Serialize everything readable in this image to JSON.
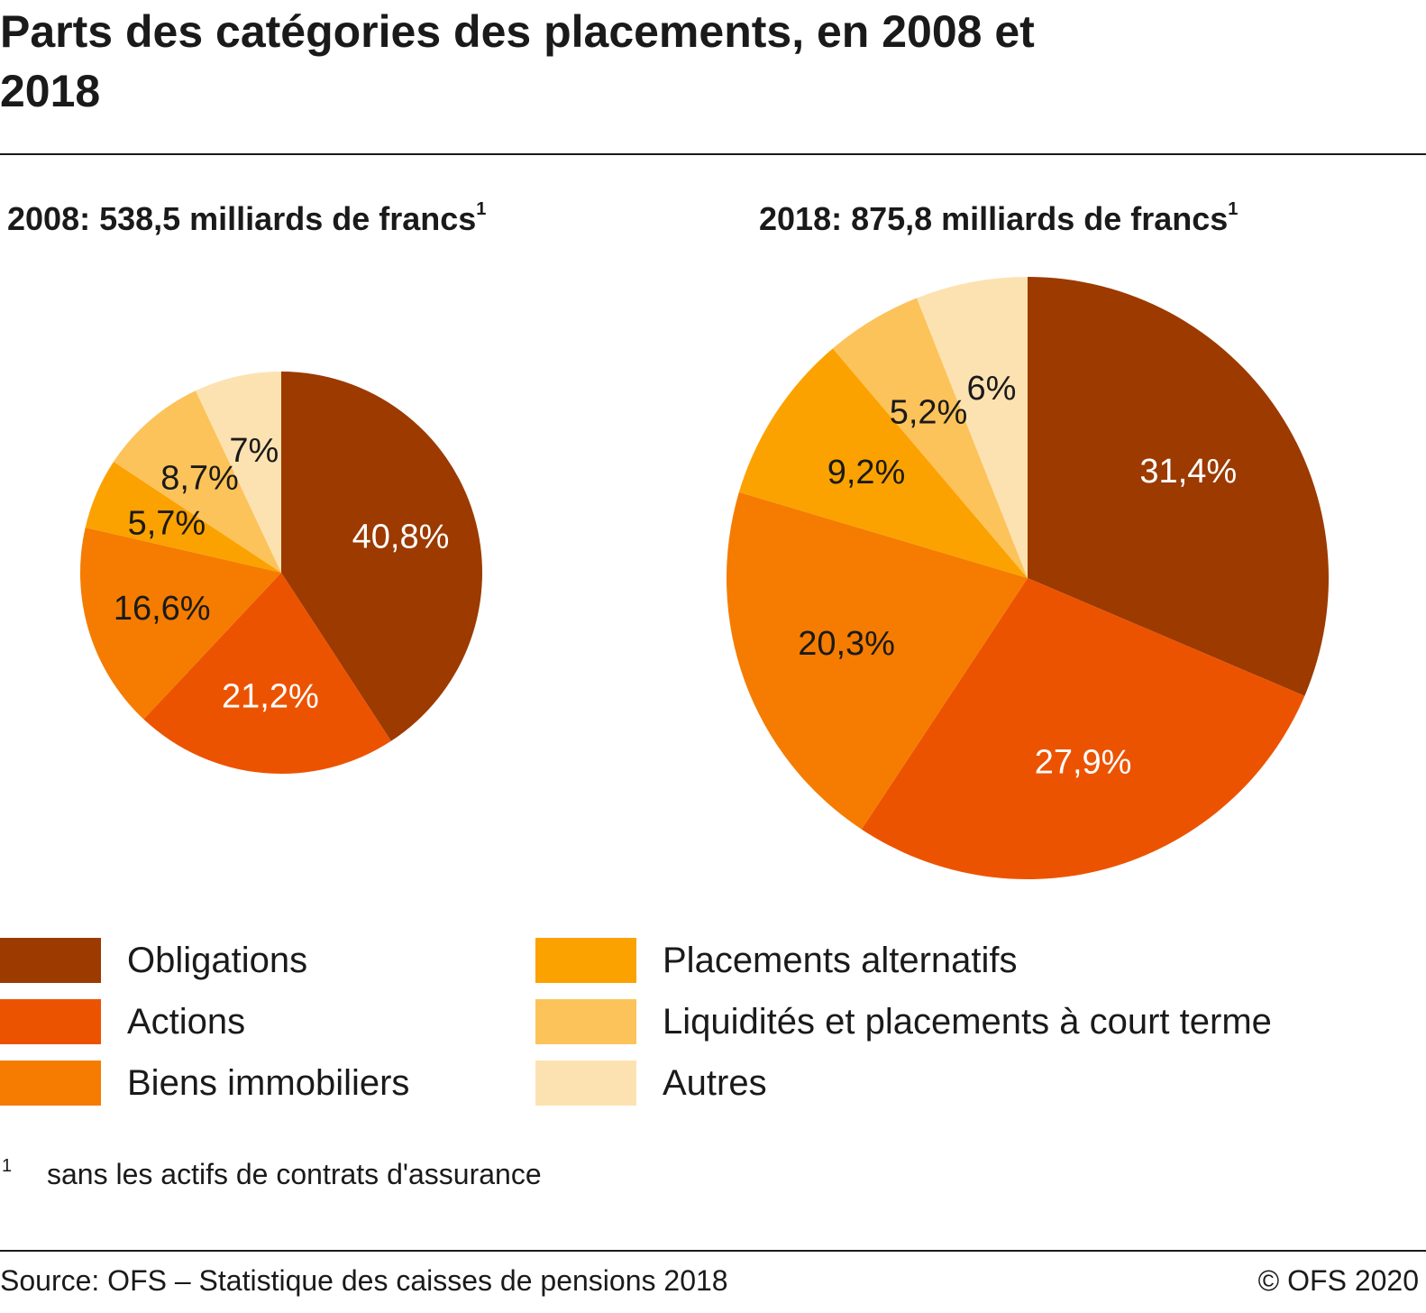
{
  "title": "Parts des catégories des placements, en 2008 et 2018",
  "legend": [
    {
      "label": "Obligations",
      "color": "#9c3a00"
    },
    {
      "label": "Actions",
      "color": "#ec5300"
    },
    {
      "label": "Biens immobiliers",
      "color": "#f57c00"
    },
    {
      "label": "Placements alternatifs",
      "color": "#fba200"
    },
    {
      "label": "Liquidités et placements à court terme",
      "color": "#fcc35a"
    },
    {
      "label": "Autres",
      "color": "#fde2b1"
    }
  ],
  "chart_data": [
    {
      "type": "pie",
      "title": "2008: 538,5 milliards de francs",
      "title_footnote": "1",
      "categories": [
        "Obligations",
        "Actions",
        "Biens immobiliers",
        "Placements alternatifs",
        "Liquidités et placements à court terme",
        "Autres"
      ],
      "values": [
        40.8,
        21.2,
        16.6,
        5.7,
        8.7,
        7.0
      ],
      "labels": [
        "40,8%",
        "21,2%",
        "16,6%",
        "5,7%",
        "8,7%",
        "7%"
      ],
      "label_colors": [
        "#ffffff",
        "#ffffff",
        "#1a1a1a",
        "#1a1a1a",
        "#1a1a1a",
        "#1a1a1a"
      ]
    },
    {
      "type": "pie",
      "title": "2018: 875,8 milliards de francs",
      "title_footnote": "1",
      "categories": [
        "Obligations",
        "Actions",
        "Biens immobiliers",
        "Placements alternatifs",
        "Liquidités et placements à court terme",
        "Autres"
      ],
      "values": [
        31.4,
        27.9,
        20.3,
        9.2,
        5.2,
        6.0
      ],
      "labels": [
        "31,4%",
        "27,9%",
        "20,3%",
        "9,2%",
        "5,2%",
        "6%"
      ],
      "label_colors": [
        "#ffffff",
        "#ffffff",
        "#1a1a1a",
        "#1a1a1a",
        "#1a1a1a",
        "#1a1a1a"
      ]
    }
  ],
  "footnote": {
    "mark": "1",
    "text": "sans les actifs de contrats d'assurance"
  },
  "source": "Source: OFS – Statistique des caisses de pensions 2018",
  "copyright": "© OFS 2020"
}
